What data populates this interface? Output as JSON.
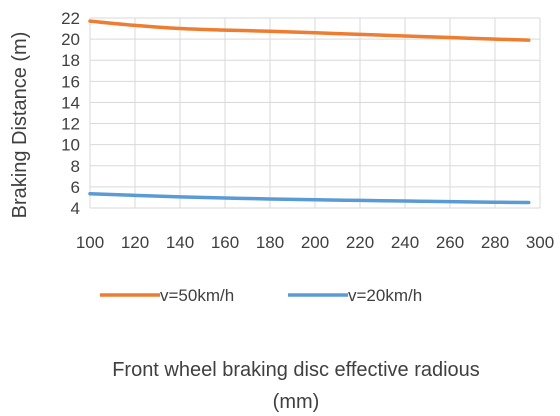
{
  "chart_data": {
    "type": "line",
    "title": "",
    "xlabel_lines": [
      "Front wheel braking disc effective radious",
      "(mm)"
    ],
    "ylabel": "Braking Distance (m)",
    "x": [
      100,
      120,
      140,
      160,
      180,
      200,
      220,
      240,
      260,
      280,
      295
    ],
    "xlim": [
      100,
      300
    ],
    "ylim": [
      4,
      22
    ],
    "xticks": [
      100,
      120,
      140,
      160,
      180,
      200,
      220,
      240,
      260,
      280,
      300
    ],
    "yticks": [
      4,
      6,
      8,
      10,
      12,
      14,
      16,
      18,
      20,
      22
    ],
    "grid": true,
    "legend_position": "bottom",
    "series": [
      {
        "name": "v=50km/h",
        "color": "#ED7D31",
        "values": [
          21.7,
          21.3,
          21.0,
          20.85,
          20.75,
          20.6,
          20.45,
          20.3,
          20.15,
          20.0,
          19.9
        ]
      },
      {
        "name": "v=20km/h",
        "color": "#5B9BD5",
        "values": [
          5.35,
          5.2,
          5.05,
          4.95,
          4.85,
          4.78,
          4.72,
          4.66,
          4.6,
          4.55,
          4.52
        ]
      }
    ],
    "gridline_color": "#D9D9D9"
  }
}
